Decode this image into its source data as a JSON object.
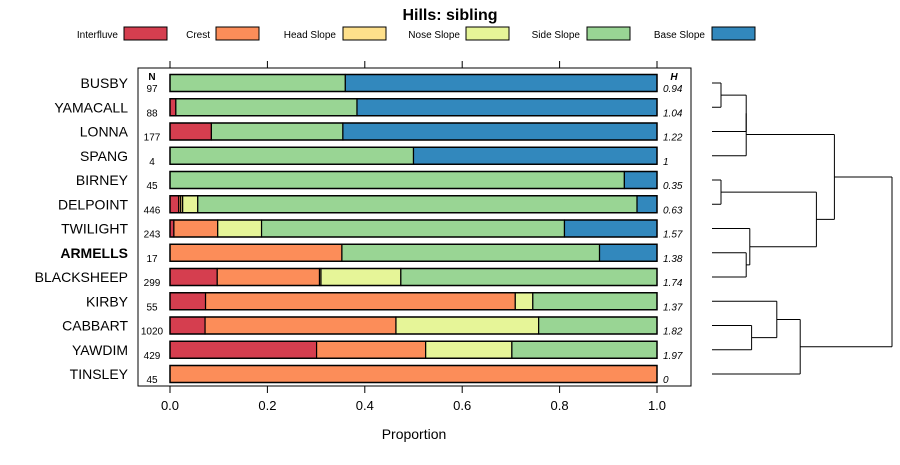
{
  "chart_data": {
    "type": "bar",
    "stacked": true,
    "orientation": "horizontal",
    "title": "Hills: sibling",
    "xlabel": "Proportion",
    "xlim": [
      0,
      1
    ],
    "x_ticks": [
      "0.0",
      "0.2",
      "0.4",
      "0.6",
      "0.8",
      "1.0"
    ],
    "n_header": "N",
    "h_header": "H",
    "legend": [
      {
        "name": "Interfluve",
        "color": "#D53E4F"
      },
      {
        "name": "Crest",
        "color": "#FC8D59"
      },
      {
        "name": "Head Slope",
        "color": "#FEE08B"
      },
      {
        "name": "Nose Slope",
        "color": "#E6F598"
      },
      {
        "name": "Side Slope",
        "color": "#99D594"
      },
      {
        "name": "Base Slope",
        "color": "#3288BD"
      }
    ],
    "rows": [
      {
        "name": "BUSBY",
        "n": "97",
        "h": "0.94",
        "bold": false,
        "values": [
          0,
          0,
          0,
          0,
          0.36,
          0.64
        ]
      },
      {
        "name": "YAMACALL",
        "n": "88",
        "h": "1.04",
        "bold": false,
        "values": [
          0.012,
          0,
          0,
          0,
          0.372,
          0.616
        ]
      },
      {
        "name": "LONNA",
        "n": "177",
        "h": "1.22",
        "bold": false,
        "values": [
          0.085,
          0,
          0,
          0,
          0.27,
          0.645
        ]
      },
      {
        "name": "SPANG",
        "n": "4",
        "h": "1",
        "bold": false,
        "values": [
          0,
          0,
          0,
          0,
          0.5,
          0.5
        ]
      },
      {
        "name": "BIRNEY",
        "n": "45",
        "h": "0.35",
        "bold": false,
        "values": [
          0,
          0,
          0,
          0,
          0.933,
          0.067
        ]
      },
      {
        "name": "DELPOINT",
        "n": "446",
        "h": "0.63",
        "bold": false,
        "values": [
          0.018,
          0.004,
          0.004,
          0.031,
          0.902,
          0.041
        ]
      },
      {
        "name": "TWILIGHT",
        "n": "243",
        "h": "1.57",
        "bold": false,
        "values": [
          0.008,
          0.09,
          0,
          0.09,
          0.622,
          0.19
        ]
      },
      {
        "name": "ARMELLS",
        "n": "17",
        "h": "1.38",
        "bold": true,
        "values": [
          0,
          0.353,
          0,
          0,
          0.529,
          0.118
        ]
      },
      {
        "name": "BLACKSHEEP",
        "n": "299",
        "h": "1.74",
        "bold": false,
        "values": [
          0.097,
          0.21,
          0.003,
          0.164,
          0.526,
          0
        ]
      },
      {
        "name": "KIRBY",
        "n": "55",
        "h": "1.37",
        "bold": false,
        "values": [
          0.073,
          0.636,
          0,
          0.036,
          0.255,
          0
        ]
      },
      {
        "name": "CABBART",
        "n": "1020",
        "h": "1.82",
        "bold": false,
        "values": [
          0.072,
          0.392,
          0,
          0.293,
          0.243,
          0
        ]
      },
      {
        "name": "YAWDIM",
        "n": "429",
        "h": "1.97",
        "bold": false,
        "values": [
          0.301,
          0.224,
          0,
          0.177,
          0.298,
          0
        ]
      },
      {
        "name": "TINSLEY",
        "n": "45",
        "h": "0",
        "bold": false,
        "values": [
          0,
          1.0,
          0,
          0,
          0,
          0
        ]
      }
    ],
    "dendrogram": {
      "note": "row indices 0..12; heights in relative dissimilarity units 0..1",
      "merges": [
        {
          "a": "r0",
          "b": "r1",
          "h": 0.05,
          "id": "c1"
        },
        {
          "a": "c1",
          "b": "r2",
          "h": 0.19,
          "id": "c2"
        },
        {
          "a": "c2",
          "b": "r3",
          "h": 0.19,
          "id": "c3"
        },
        {
          "a": "r4",
          "b": "r5",
          "h": 0.05,
          "id": "c4"
        },
        {
          "a": "r7",
          "b": "r8",
          "h": 0.19,
          "id": "c5"
        },
        {
          "a": "r6",
          "b": "c5",
          "h": 0.21,
          "id": "c6"
        },
        {
          "a": "c4",
          "b": "c6",
          "h": 0.58,
          "id": "c7"
        },
        {
          "a": "c3",
          "b": "c7",
          "h": 0.68,
          "id": "c8"
        },
        {
          "a": "r10",
          "b": "r11",
          "h": 0.22,
          "id": "c9"
        },
        {
          "a": "r9",
          "b": "c9",
          "h": 0.36,
          "id": "c10"
        },
        {
          "a": "c10",
          "b": "r12",
          "h": 0.49,
          "id": "c11"
        },
        {
          "a": "c8",
          "b": "c11",
          "h": 1.0,
          "id": "c12"
        }
      ]
    }
  }
}
